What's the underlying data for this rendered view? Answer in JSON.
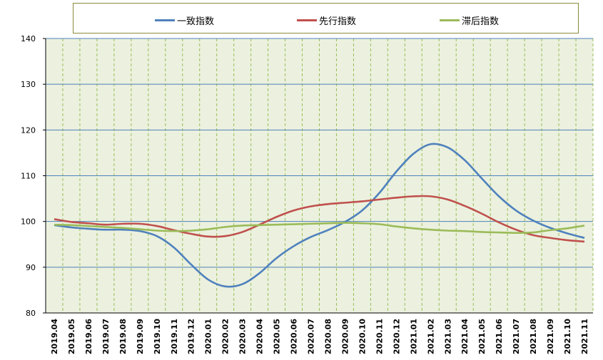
{
  "chart_data": {
    "type": "line",
    "title": "",
    "xlabel": "",
    "ylabel": "",
    "ylim": [
      80,
      140
    ],
    "yticks": [
      80,
      90,
      100,
      110,
      120,
      130,
      140
    ],
    "grid": true,
    "legend_position": "top",
    "plot_background": "#ebf1de",
    "categories": [
      "2019.04",
      "2019.05",
      "2019.06",
      "2019.07",
      "2019.08",
      "2019.09",
      "2019.10",
      "2019.11",
      "2019.12",
      "2020.01",
      "2020.02",
      "2020.03",
      "2020.04",
      "2020.05",
      "2020.06",
      "2020.07",
      "2020.08",
      "2020.09",
      "2020.10",
      "2020.11",
      "2020.12",
      "2021.01",
      "2021.02",
      "2021.03",
      "2021.04",
      "2021.05",
      "2021.06",
      "2021.07",
      "2021.08",
      "2021.09",
      "2021.10",
      "2021.11"
    ],
    "series": [
      {
        "name": "一致指数",
        "color": "#4f81bd",
        "values": [
          99.2,
          98.7,
          98.4,
          98.2,
          98.2,
          97.9,
          96.8,
          94.3,
          90.6,
          87.3,
          85.8,
          86.3,
          88.7,
          92.0,
          94.6,
          96.6,
          98.1,
          99.9,
          102.4,
          106.2,
          110.9,
          114.8,
          116.9,
          116.2,
          113.4,
          109.4,
          105.5,
          102.4,
          100.2,
          98.6,
          97.4,
          96.4
        ]
      },
      {
        "name": "先行指数",
        "color": "#c0504d",
        "values": [
          100.5,
          99.9,
          99.6,
          99.3,
          99.5,
          99.5,
          99.0,
          98.1,
          97.3,
          96.7,
          96.8,
          97.7,
          99.3,
          101.0,
          102.4,
          103.3,
          103.8,
          104.1,
          104.4,
          104.8,
          105.2,
          105.5,
          105.5,
          104.8,
          103.4,
          101.7,
          99.8,
          98.2,
          97.0,
          96.4,
          95.9,
          95.6
        ]
      },
      {
        "name": "滞后指数",
        "color": "#9bbb59",
        "values": [
          99.3,
          99.2,
          99.0,
          98.8,
          98.6,
          98.3,
          98.0,
          97.9,
          98.0,
          98.3,
          98.8,
          99.1,
          99.2,
          99.3,
          99.4,
          99.5,
          99.6,
          99.7,
          99.6,
          99.4,
          98.9,
          98.5,
          98.2,
          98.0,
          97.9,
          97.7,
          97.6,
          97.5,
          97.6,
          98.1,
          98.5,
          99.1
        ]
      }
    ]
  }
}
